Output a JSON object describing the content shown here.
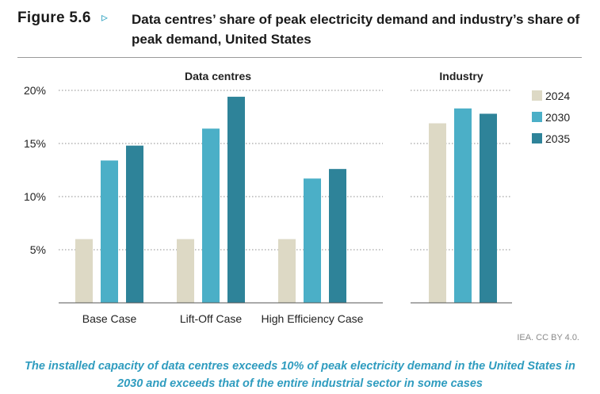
{
  "figure": {
    "label": "Figure 5.6",
    "arrow": "▹",
    "title": "Data centres’ share of peak electricity demand and industry’s share of peak demand, United States"
  },
  "chart_data": {
    "type": "bar",
    "ylim": [
      0,
      20
    ],
    "yticks": [
      5,
      10,
      15,
      20
    ],
    "ytick_labels": [
      "5%",
      "10%",
      "15%",
      "20%"
    ],
    "grid": true,
    "legend_position": "right",
    "series": [
      {
        "name": "2024",
        "color": "#ddd9c5"
      },
      {
        "name": "2030",
        "color": "#4bafc7"
      },
      {
        "name": "2035",
        "color": "#2e8399"
      }
    ],
    "panels": [
      {
        "title": "Data centres",
        "categories": [
          "Base Case",
          "Lift-Off Case",
          "High Efficiency Case"
        ],
        "values": [
          [
            6.0,
            13.4,
            14.8
          ],
          [
            6.0,
            16.4,
            19.4
          ],
          [
            6.0,
            11.7,
            12.6
          ]
        ]
      },
      {
        "title": "Industry",
        "categories": [
          ""
        ],
        "values": [
          [
            16.9,
            18.3,
            17.8
          ]
        ]
      }
    ]
  },
  "source": "IEA. CC BY 4.0.",
  "caption": "The installed capacity of data centres exceeds 10% of peak electricity demand in the United States in 2030 and exceeds that of the entire industrial sector in some cases"
}
